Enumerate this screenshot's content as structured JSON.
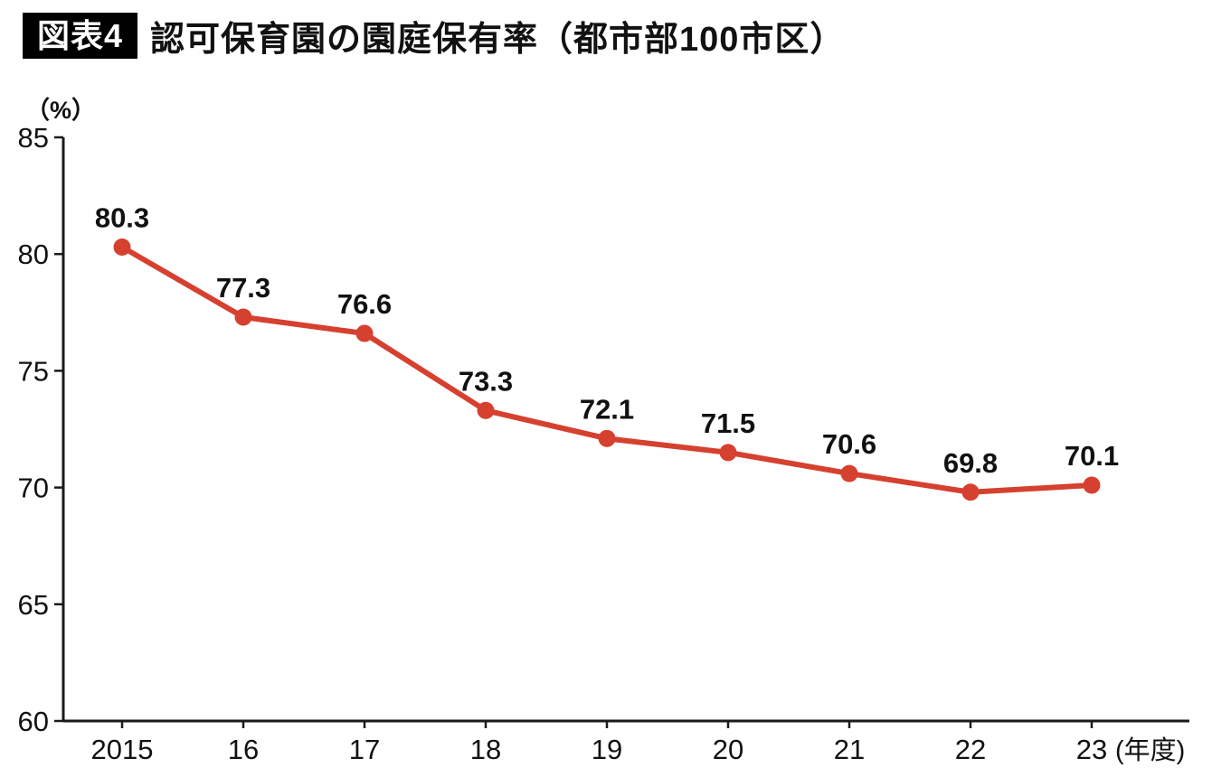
{
  "header": {
    "badge": "図表4",
    "title": "認可保育園の園庭保有率（都市部100市区）"
  },
  "chart_data": {
    "type": "line",
    "title": "認可保育園の園庭保有率（都市部100市区）",
    "categories": [
      "2015",
      "16",
      "17",
      "18",
      "19",
      "20",
      "21",
      "22",
      "23"
    ],
    "values": [
      80.3,
      77.3,
      76.6,
      73.3,
      72.1,
      71.5,
      70.6,
      69.8,
      70.1
    ],
    "ylabel": "（%）",
    "x_suffix": "(年度)",
    "ylim": [
      60,
      85
    ],
    "yticks": [
      60,
      65,
      70,
      75,
      80,
      85
    ],
    "line_color": "#d6402f",
    "axis_color": "#1a1a1a",
    "grid": false,
    "legend": false
  }
}
